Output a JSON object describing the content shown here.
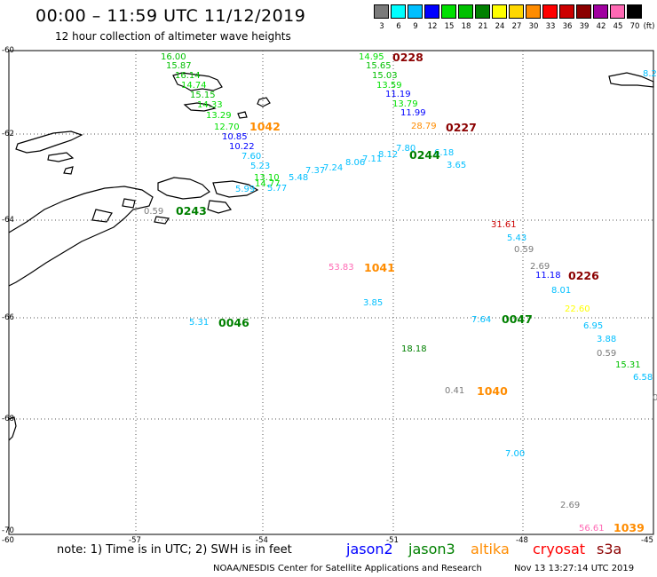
{
  "title": "00:00 – 11:59 UTC 11/12/2019",
  "subtitle": "12 hour collection of altimeter wave heights",
  "legend": {
    "unit_label": "(ft)",
    "bins": [
      {
        "label": "3",
        "color": "#7a7a7a"
      },
      {
        "label": "6",
        "color": "#00ffff"
      },
      {
        "label": "9",
        "color": "#00bfff"
      },
      {
        "label": "12",
        "color": "#0000ff"
      },
      {
        "label": "15",
        "color": "#00e000"
      },
      {
        "label": "18",
        "color": "#00c000"
      },
      {
        "label": "21",
        "color": "#008000"
      },
      {
        "label": "24",
        "color": "#ffff00"
      },
      {
        "label": "27",
        "color": "#ffd700"
      },
      {
        "label": "30",
        "color": "#ff8c00"
      },
      {
        "label": "33",
        "color": "#ff0000"
      },
      {
        "label": "36",
        "color": "#cc0000"
      },
      {
        "label": "39",
        "color": "#8b0000"
      },
      {
        "label": "42",
        "color": "#a000a0"
      },
      {
        "label": "45",
        "color": "#ff69b4"
      },
      {
        "label": "70",
        "color": "#000000"
      }
    ]
  },
  "axes": {
    "lat_labels": [
      "-60",
      "-62",
      "-64",
      "-66",
      "-68",
      "-70"
    ],
    "lon_labels": [
      "-57",
      "-54",
      "-51",
      "-48",
      "-45"
    ],
    "corner_label": "-60"
  },
  "wave_heights": [
    {
      "value": "16.00",
      "color": "#00c000"
    },
    {
      "value": "15.87",
      "color": "#00c000"
    },
    {
      "value": "16.14",
      "color": "#00c000"
    },
    {
      "value": "14.74",
      "color": "#00e000"
    },
    {
      "value": "15.15",
      "color": "#00c000"
    },
    {
      "value": "14.33",
      "color": "#00e000"
    },
    {
      "value": "13.29",
      "color": "#00e000"
    },
    {
      "value": "12.70",
      "color": "#00e000"
    },
    {
      "value": "10.85",
      "color": "#0000ff"
    },
    {
      "value": "10.22",
      "color": "#0000ff"
    },
    {
      "value": "7.60",
      "color": "#00bfff"
    },
    {
      "value": "5.23",
      "color": "#00bfff"
    },
    {
      "value": "13.10",
      "color": "#00e000"
    },
    {
      "value": "5.99",
      "color": "#00bfff"
    },
    {
      "value": "5.77",
      "color": "#00bfff"
    },
    {
      "value": "14.77",
      "color": "#00e000"
    },
    {
      "value": "5.48",
      "color": "#00bfff"
    },
    {
      "value": "7.37",
      "color": "#00bfff"
    },
    {
      "value": "7.24",
      "color": "#00bfff"
    },
    {
      "value": "8.06",
      "color": "#00bfff"
    },
    {
      "value": "7.11",
      "color": "#00bfff"
    },
    {
      "value": "8.12",
      "color": "#00bfff"
    },
    {
      "value": "7.80",
      "color": "#00bfff"
    },
    {
      "value": "6.18",
      "color": "#00bfff"
    },
    {
      "value": "3.65",
      "color": "#00bfff"
    },
    {
      "value": "14.95",
      "color": "#00e000"
    },
    {
      "value": "15.65",
      "color": "#00c000"
    },
    {
      "value": "15.03",
      "color": "#00c000"
    },
    {
      "value": "13.59",
      "color": "#00e000"
    },
    {
      "value": "11.19",
      "color": "#0000ff"
    },
    {
      "value": "13.79",
      "color": "#00e000"
    },
    {
      "value": "11.99",
      "color": "#0000ff"
    },
    {
      "value": "28.79",
      "color": "#ff8c00"
    },
    {
      "value": "0.59",
      "color": "#7a7a7a"
    },
    {
      "value": "31.61",
      "color": "#cc0000"
    },
    {
      "value": "5.43",
      "color": "#00bfff"
    },
    {
      "value": "0.59",
      "color": "#7a7a7a"
    },
    {
      "value": "2.69",
      "color": "#7a7a7a"
    },
    {
      "value": "11.18",
      "color": "#0000ff"
    },
    {
      "value": "8.01",
      "color": "#00bfff"
    },
    {
      "value": "53.83",
      "color": "#ff69b4"
    },
    {
      "value": "3.85",
      "color": "#00bfff"
    },
    {
      "value": "22.60",
      "color": "#ffff00"
    },
    {
      "value": "5.31",
      "color": "#00bfff"
    },
    {
      "value": "7.64",
      "color": "#00bfff"
    },
    {
      "value": "6.95",
      "color": "#00bfff"
    },
    {
      "value": "3.88",
      "color": "#00bfff"
    },
    {
      "value": "0.59",
      "color": "#7a7a7a"
    },
    {
      "value": "15.31",
      "color": "#00c000"
    },
    {
      "value": "6.58",
      "color": "#00bfff"
    },
    {
      "value": "18.18",
      "color": "#008000"
    },
    {
      "value": "0.41",
      "color": "#7a7a7a"
    },
    {
      "value": "7.00",
      "color": "#00bfff"
    },
    {
      "value": "2.69",
      "color": "#7a7a7a"
    },
    {
      "value": "56.61",
      "color": "#ff69b4"
    },
    {
      "value": "8.2",
      "color": "#00bfff"
    },
    {
      "value": "0",
      "color": "#7a7a7a"
    }
  ],
  "pass_times": [
    {
      "value": "0228",
      "color": "#8b0000"
    },
    {
      "value": "1042",
      "color": "#ff8c00"
    },
    {
      "value": "0227",
      "color": "#8b0000"
    },
    {
      "value": "0244",
      "color": "#008000"
    },
    {
      "value": "0243",
      "color": "#008000"
    },
    {
      "value": "1041",
      "color": "#ff8c00"
    },
    {
      "value": "0226",
      "color": "#8b0000"
    },
    {
      "value": "0046",
      "color": "#008000"
    },
    {
      "value": "0047",
      "color": "#008000"
    },
    {
      "value": "1040",
      "color": "#ff8c00"
    },
    {
      "value": "1039",
      "color": "#ff8c00"
    }
  ],
  "footer": {
    "note": "note: 1) Time is in UTC; 2) SWH is in feet",
    "satellites": [
      {
        "name": "jason2",
        "color": "#0000ff"
      },
      {
        "name": "jason3",
        "color": "#008000"
      },
      {
        "name": "altika",
        "color": "#ff8c00"
      },
      {
        "name": "cryosat",
        "color": "#ff0000"
      },
      {
        "name": "s3a",
        "color": "#8b0000"
      }
    ],
    "credit": "NOAA/NESDIS Center for Satellite Applications and Research",
    "timestamp": "Nov 13 13:27:14 UTC 2019"
  }
}
